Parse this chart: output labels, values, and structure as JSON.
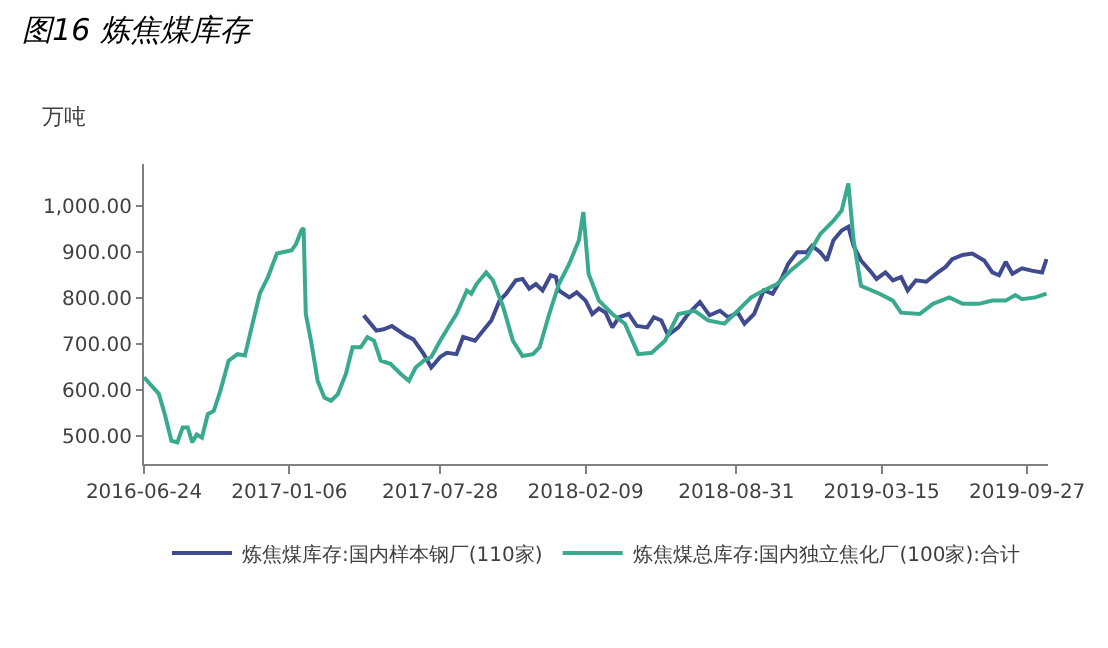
{
  "chart_data": {
    "type": "line",
    "title": "图16 炼焦煤库存",
    "ylabel": "万吨",
    "xlim": [
      "2016-06-24",
      "2019-10-25"
    ],
    "xticks": [
      {
        "value": "2016-06-24",
        "label": "2016-06-24"
      },
      {
        "value": "2017-01-06",
        "label": "2017-01-06"
      },
      {
        "value": "2017-07-28",
        "label": "2017-07-28"
      },
      {
        "value": "2018-02-09",
        "label": "2018-02-09"
      },
      {
        "value": "2018-08-31",
        "label": "2018-08-31"
      },
      {
        "value": "2019-03-15",
        "label": "2019-03-15"
      },
      {
        "value": "2019-09-27",
        "label": "2019-09-27"
      }
    ],
    "ylim": [
      440,
      1090
    ],
    "yticks": [
      {
        "value": 500,
        "label": "500.00"
      },
      {
        "value": 600,
        "label": "600.00"
      },
      {
        "value": 700,
        "label": "700.00"
      },
      {
        "value": 800,
        "label": "800.00"
      },
      {
        "value": 900,
        "label": "900.00"
      },
      {
        "value": 1000,
        "label": "1,000.00"
      }
    ],
    "legend": "bottom",
    "marker": "none",
    "line_style": "solid",
    "series": [
      {
        "name": "炼焦煤库存:国内样本钢厂(110家)",
        "color": "#3f4a8f",
        "x": [
          "2017-04-16",
          "2017-05-03",
          "2017-05-13",
          "2017-05-24",
          "2017-06-11",
          "2017-06-22",
          "2017-07-06",
          "2017-07-16",
          "2017-07-28",
          "2017-08-06",
          "2017-08-19",
          "2017-08-28",
          "2017-09-13",
          "2017-09-24",
          "2017-10-05",
          "2017-10-16",
          "2017-10-25",
          "2017-11-07",
          "2017-11-16",
          "2017-11-25",
          "2017-12-04",
          "2017-12-13",
          "2017-12-24",
          "2017-12-31",
          "2018-01-04",
          "2018-01-18",
          "2018-01-28",
          "2018-02-09",
          "2018-02-18",
          "2018-02-27",
          "2018-03-08",
          "2018-03-17",
          "2018-03-26",
          "2018-04-08",
          "2018-04-19",
          "2018-05-03",
          "2018-05-12",
          "2018-05-22",
          "2018-05-31",
          "2018-06-14",
          "2018-06-27",
          "2018-07-13",
          "2018-07-26",
          "2018-08-09",
          "2018-08-20",
          "2018-09-02",
          "2018-09-11",
          "2018-09-24",
          "2018-10-07",
          "2018-10-19",
          "2018-11-01",
          "2018-11-09",
          "2018-11-21",
          "2018-12-04",
          "2018-12-11",
          "2018-12-22",
          "2018-12-31",
          "2019-01-09",
          "2019-01-20",
          "2019-01-29",
          "2019-02-05",
          "2019-02-15",
          "2019-02-27",
          "2019-03-08",
          "2019-03-20",
          "2019-03-30",
          "2019-04-10",
          "2019-04-19",
          "2019-04-30",
          "2019-05-14",
          "2019-05-27",
          "2019-06-09",
          "2019-06-18",
          "2019-07-02",
          "2019-07-15",
          "2019-07-31",
          "2019-08-11",
          "2019-08-20",
          "2019-08-29",
          "2019-09-07",
          "2019-09-20",
          "2019-10-03",
          "2019-10-17",
          "2019-10-23"
        ],
        "values": [
          762,
          729,
          732,
          739,
          719,
          710,
          678,
          649,
          672,
          681,
          678,
          715,
          707,
          729,
          751,
          794,
          809,
          838,
          841,
          820,
          830,
          816,
          849,
          845,
          816,
          801,
          812,
          794,
          765,
          777,
          768,
          736,
          758,
          765,
          739,
          736,
          758,
          751,
          719,
          736,
          765,
          791,
          762,
          772,
          758,
          768,
          744,
          765,
          816,
          809,
          845,
          874,
          899,
          899,
          913,
          899,
          881,
          925,
          946,
          954,
          913,
          881,
          859,
          841,
          855,
          838,
          845,
          816,
          838,
          835,
          852,
          867,
          884,
          893,
          896,
          881,
          855,
          849,
          878,
          852,
          864,
          859,
          855,
          884
        ]
      },
      {
        "name": "炼焦煤总库存:国内独立焦化厂(100家):合计",
        "color": "#3aaa8f",
        "x": [
          "2016-06-24",
          "2016-07-14",
          "2016-07-22",
          "2016-07-31",
          "2016-08-08",
          "2016-08-15",
          "2016-08-22",
          "2016-08-28",
          "2016-09-03",
          "2016-09-10",
          "2016-09-18",
          "2016-09-26",
          "2016-10-05",
          "2016-10-16",
          "2016-10-28",
          "2016-11-07",
          "2016-11-16",
          "2016-11-27",
          "2016-12-08",
          "2016-12-20",
          "2016-12-31",
          "2017-01-09",
          "2017-01-15",
          "2017-01-22",
          "2017-01-25",
          "2017-01-28",
          "2017-02-04",
          "2017-02-13",
          "2017-02-22",
          "2017-03-03",
          "2017-03-12",
          "2017-03-23",
          "2017-04-01",
          "2017-04-12",
          "2017-04-21",
          "2017-04-30",
          "2017-05-09",
          "2017-05-22",
          "2017-06-05",
          "2017-06-16",
          "2017-06-25",
          "2017-07-06",
          "2017-07-16",
          "2017-07-28",
          "2017-08-09",
          "2017-08-19",
          "2017-09-02",
          "2017-09-08",
          "2017-09-15",
          "2017-09-28",
          "2017-10-07",
          "2017-10-21",
          "2017-11-03",
          "2017-11-16",
          "2017-11-30",
          "2017-12-09",
          "2017-12-22",
          "2018-01-04",
          "2018-01-18",
          "2018-01-31",
          "2018-02-06",
          "2018-02-13",
          "2018-02-27",
          "2018-03-17",
          "2018-04-03",
          "2018-04-21",
          "2018-05-09",
          "2018-05-27",
          "2018-06-14",
          "2018-07-06",
          "2018-07-24",
          "2018-08-15",
          "2018-09-02",
          "2018-09-20",
          "2018-10-07",
          "2018-10-25",
          "2018-11-12",
          "2018-12-04",
          "2018-12-22",
          "2019-01-09",
          "2019-01-20",
          "2019-01-29",
          "2019-02-05",
          "2019-02-15",
          "2019-03-12",
          "2019-03-30",
          "2019-04-10",
          "2019-05-05",
          "2019-05-23",
          "2019-06-14",
          "2019-07-02",
          "2019-07-24",
          "2019-08-11",
          "2019-08-29",
          "2019-09-11",
          "2019-09-20",
          "2019-10-08",
          "2019-10-23"
        ],
        "values": [
          628,
          592,
          548,
          490,
          487,
          519,
          519,
          487,
          504,
          497,
          548,
          555,
          599,
          664,
          678,
          675,
          736,
          809,
          845,
          896,
          900,
          903,
          917,
          946,
          951,
          765,
          707,
          620,
          584,
          577,
          591,
          635,
          693,
          693,
          715,
          707,
          664,
          657,
          635,
          620,
          649,
          664,
          672,
          707,
          739,
          765,
          816,
          809,
          830,
          855,
          838,
          780,
          707,
          674,
          678,
          693,
          765,
          830,
          874,
          925,
          986,
          852,
          794,
          765,
          744,
          678,
          681,
          707,
          765,
          772,
          751,
          744,
          772,
          801,
          816,
          830,
          859,
          888,
          938,
          967,
          989,
          1048,
          925,
          826,
          809,
          794,
          768,
          765,
          787,
          801,
          787,
          787,
          794,
          794,
          806,
          797,
          801,
          809
        ]
      }
    ]
  }
}
